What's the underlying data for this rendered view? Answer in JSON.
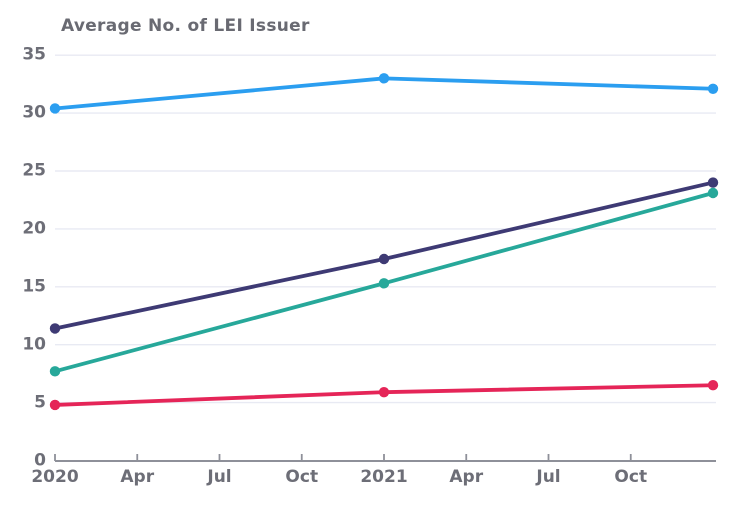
{
  "chart_data": {
    "type": "line",
    "title": "Average No. of LEI Issuer",
    "xlabel": "",
    "ylabel": "",
    "x_tick_labels": [
      "2020",
      "Apr",
      "Jul",
      "Oct",
      "2021",
      "Apr",
      "Jul",
      "Oct"
    ],
    "y_tick_labels": [
      "0",
      "5",
      "10",
      "15",
      "20",
      "25",
      "30",
      "35"
    ],
    "y_tick_values": [
      0,
      5,
      10,
      15,
      20,
      25,
      30,
      35
    ],
    "ygrid_values": [
      5,
      10,
      15,
      20,
      25,
      30,
      35
    ],
    "ylim": [
      0,
      36.5
    ],
    "grid": "horizontal-only",
    "legend_position": "none",
    "data_point_tick_indices": [
      0,
      4,
      8
    ],
    "series": [
      {
        "name": "light-blue-series",
        "color": "#2B9EF0",
        "values": [
          30.4,
          33.0,
          32.1
        ]
      },
      {
        "name": "dark-purple-series",
        "color": "#3E3A74",
        "values": [
          11.4,
          17.4,
          24.0
        ]
      },
      {
        "name": "teal-series",
        "color": "#27A89A",
        "values": [
          7.7,
          15.3,
          23.1
        ]
      },
      {
        "name": "red-series",
        "color": "#E52558",
        "values": [
          4.8,
          5.9,
          6.5
        ]
      }
    ],
    "colors": {
      "background": "#FFFFFF",
      "gridline": "#E8EAF3",
      "axis": "#8E9099",
      "tick_label": "#6D6E77",
      "title": "#696A72"
    }
  }
}
